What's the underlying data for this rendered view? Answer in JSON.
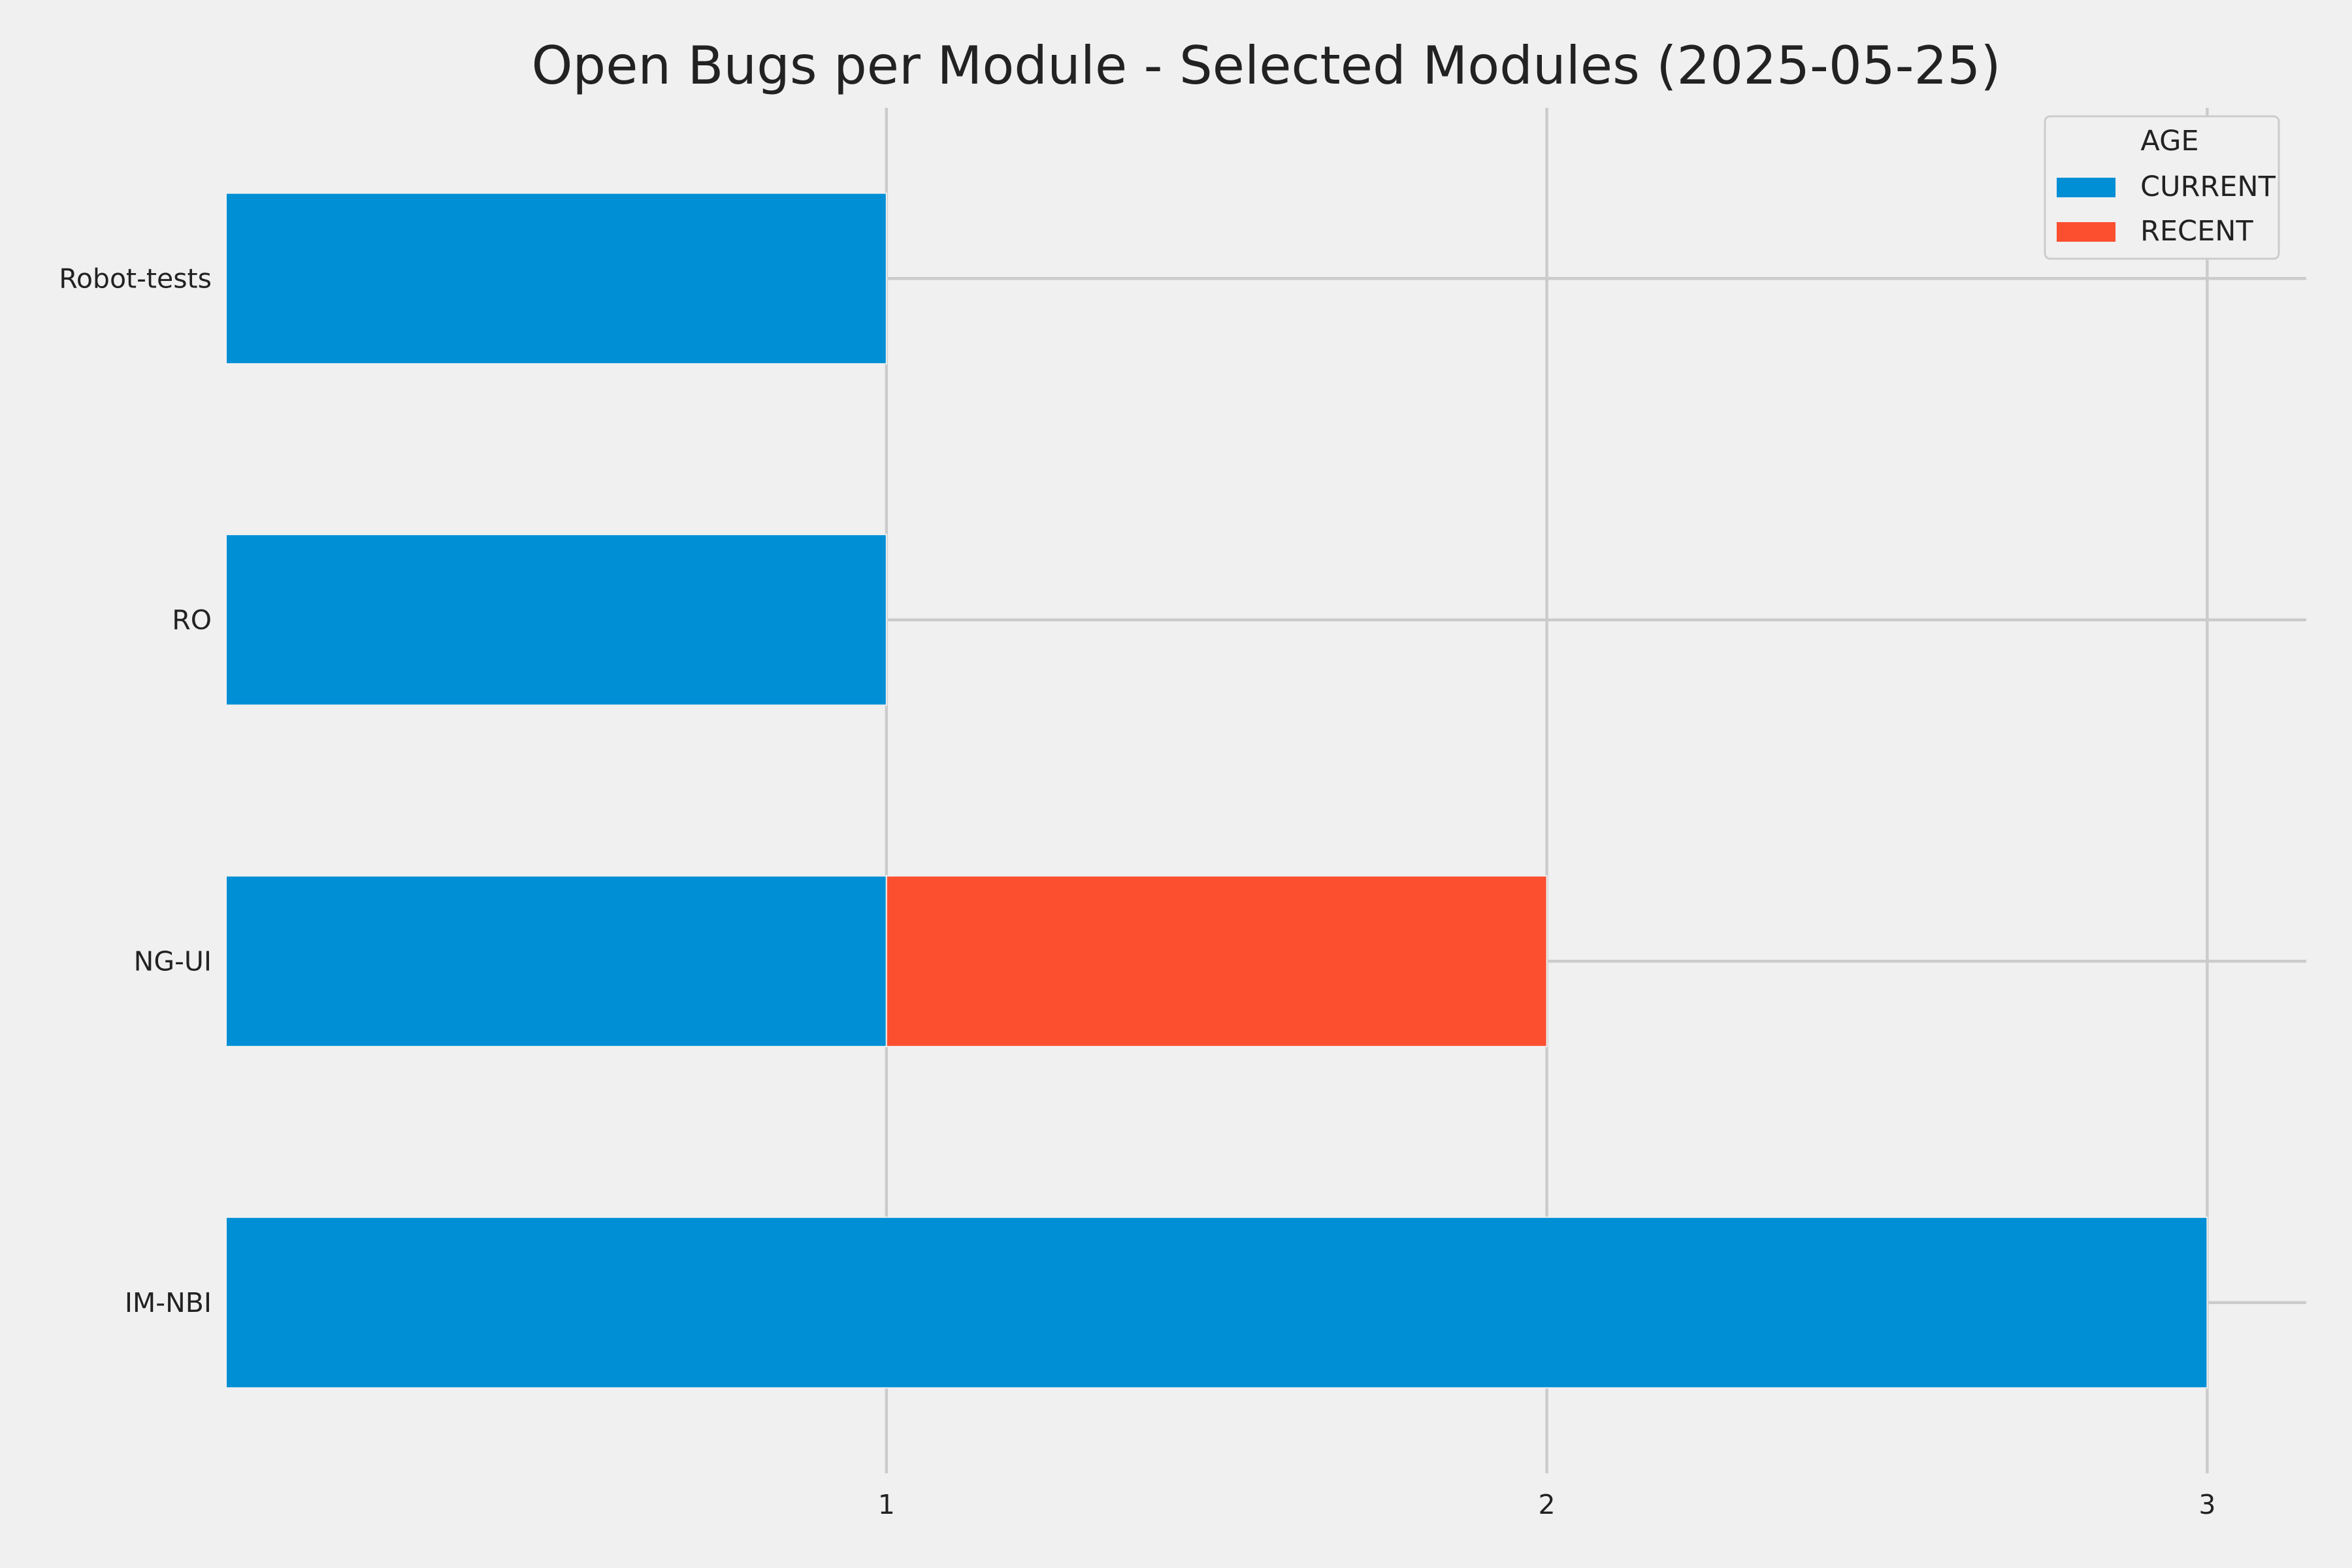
{
  "chart_data": {
    "type": "bar",
    "orientation": "horizontal",
    "stacked": true,
    "title": "Open Bugs per Module - Selected Modules (2025-05-25)",
    "xlabel": "",
    "ylabel": "",
    "categories": [
      "IM-NBI",
      "NG-UI",
      "RO",
      "Robot-tests"
    ],
    "series": [
      {
        "name": "CURRENT",
        "color": "#008fd5",
        "values": [
          3,
          1,
          1,
          1
        ]
      },
      {
        "name": "RECENT",
        "color": "#fc4f30",
        "values": [
          0,
          1,
          0,
          0
        ]
      }
    ],
    "xlim": [
      0,
      3.15
    ],
    "xticks": [
      "1",
      "2",
      "3"
    ],
    "grid": true,
    "legend": {
      "title": "AGE",
      "position": "top-right"
    }
  }
}
